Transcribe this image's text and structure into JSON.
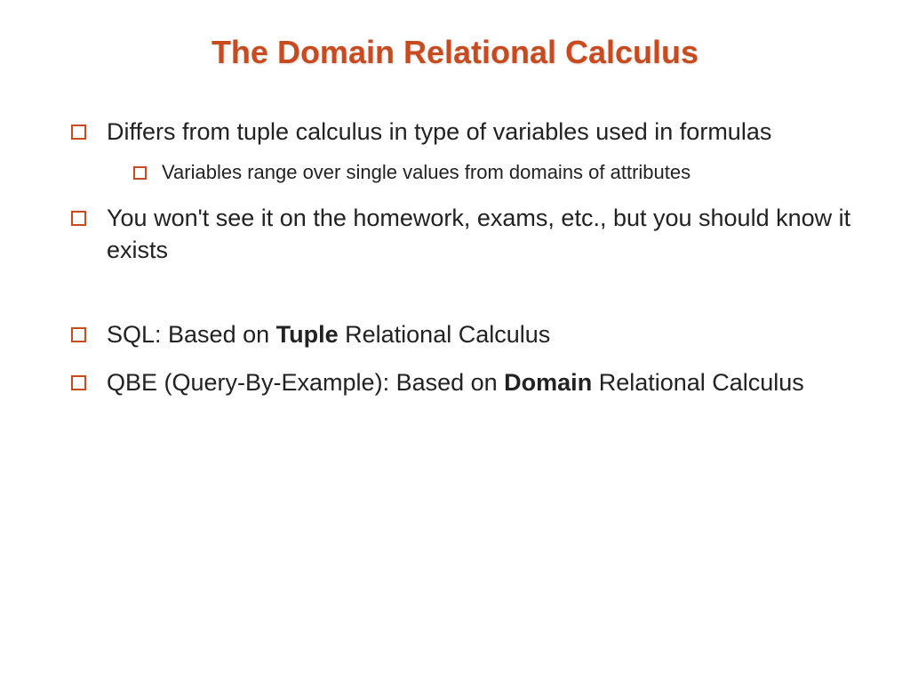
{
  "slide": {
    "title": "The Domain Relational Calculus",
    "title_color": "#c84a1f",
    "title_fontsize": 36,
    "body_fontsize": 27,
    "sub_fontsize": 22,
    "bullet_border_color": "#c84a1f",
    "background_color": "#ffffff",
    "text_color": "#222222",
    "bullets": [
      {
        "text": "Differs from tuple calculus in type of variables used in formulas",
        "sub": [
          "Variables range over single values from domains of attributes"
        ]
      },
      {
        "text": "You won't see it on the homework, exams, etc., but you should know it exists"
      },
      {
        "spacer": true
      },
      {
        "parts": [
          {
            "text": "SQL: Based on ",
            "bold": false
          },
          {
            "text": "Tuple",
            "bold": true
          },
          {
            "text": " Relational Calculus",
            "bold": false
          }
        ]
      },
      {
        "parts": [
          {
            "text": "QBE (Query-By-Example): Based on ",
            "bold": false
          },
          {
            "text": "Domain",
            "bold": true
          },
          {
            "text": " Relational Calculus",
            "bold": false
          }
        ]
      }
    ]
  }
}
